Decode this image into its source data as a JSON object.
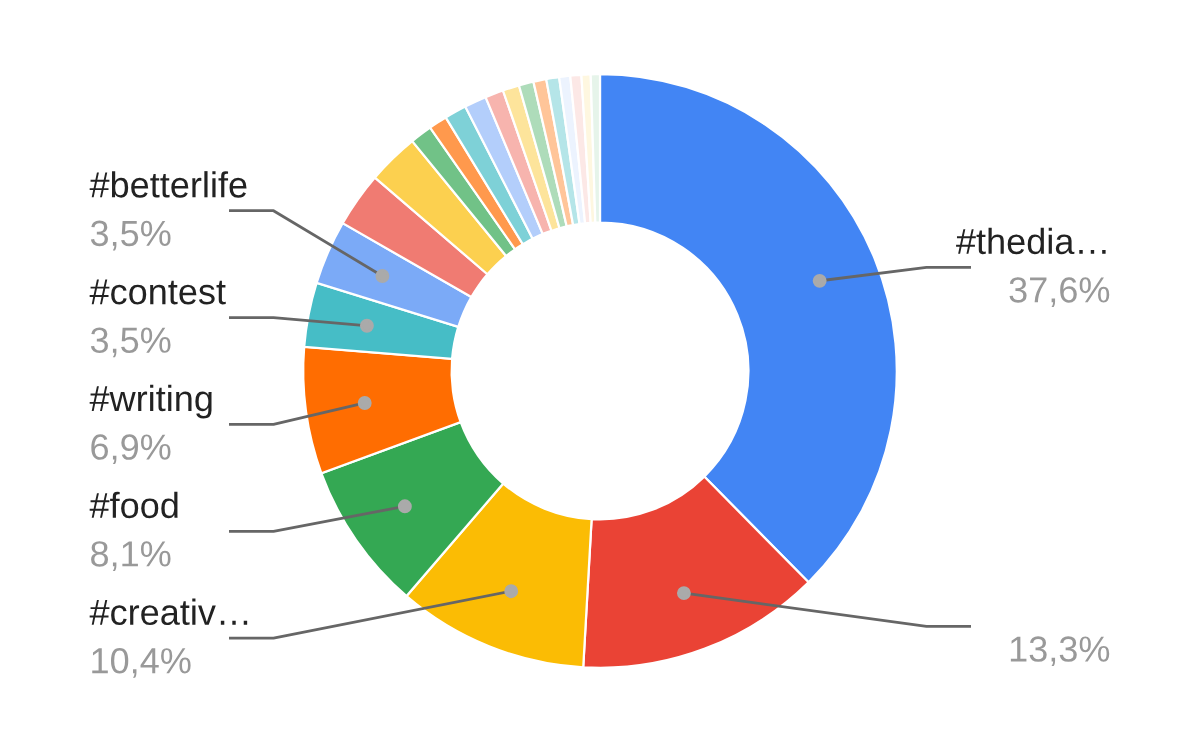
{
  "chart_data": {
    "type": "donut",
    "categories": [
      "#thedia…",
      null,
      "#creativ…",
      "#food",
      "#writing",
      "#contest",
      "#betterlife",
      null,
      null,
      null,
      null,
      null,
      null,
      null,
      null,
      null,
      null,
      null,
      null,
      null,
      null,
      null
    ],
    "values": [
      37.6,
      13.3,
      10.4,
      8.1,
      6.9,
      3.5,
      3.5,
      3.0,
      2.8,
      1.2,
      1.0,
      1.2,
      1.2,
      1.0,
      0.9,
      0.8,
      0.7,
      0.7,
      0.6,
      0.6,
      0.5,
      0.5
    ],
    "value_labels": [
      "37,6%",
      "13,3%",
      "10,4%",
      "8,1%",
      "6,9%",
      "3,5%",
      "3,5%",
      null,
      null,
      null,
      null,
      null,
      null,
      null,
      null,
      null,
      null,
      null,
      null,
      null,
      null,
      null
    ],
    "colors": [
      "#4285f4",
      "#ea4335",
      "#fbbc04",
      "#34a853",
      "#ff6d01",
      "#46bdc6",
      "#7baaf7",
      "#f07b72",
      "#fcd04f",
      "#71c287",
      "#ff994d",
      "#7ed1d7",
      "#b3cefb",
      "#f7b4ae",
      "#fde49b",
      "#aedcba",
      "#ffc599",
      "#b5e5e8",
      "#ecf3fe",
      "#fce8e6",
      "#fef7e0",
      "#e6f4ea"
    ],
    "legend": false
  }
}
